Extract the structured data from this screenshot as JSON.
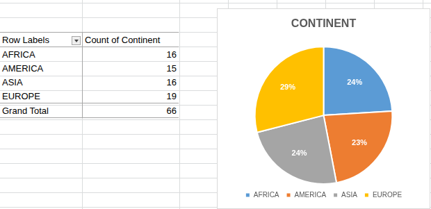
{
  "table": {
    "header": [
      "Row Labels",
      "Count of Continent"
    ],
    "rows": [
      [
        "AFRICA",
        16
      ],
      [
        "AMERICA",
        15
      ],
      [
        "ASIA",
        16
      ],
      [
        "EUROPE",
        19
      ]
    ],
    "total": [
      "Grand Total",
      66
    ]
  },
  "chart_data": {
    "type": "pie",
    "title": "CONTINENT",
    "categories": [
      "AFRICA",
      "AMERICA",
      "ASIA",
      "EUROPE"
    ],
    "values": [
      24,
      23,
      24,
      29
    ],
    "value_labels": [
      "24%",
      "23%",
      "24%",
      "29%"
    ],
    "colors": [
      "#5b9bd5",
      "#ed7d31",
      "#a5a5a5",
      "#ffc000"
    ],
    "data_labels": true,
    "legend": "bottom"
  }
}
